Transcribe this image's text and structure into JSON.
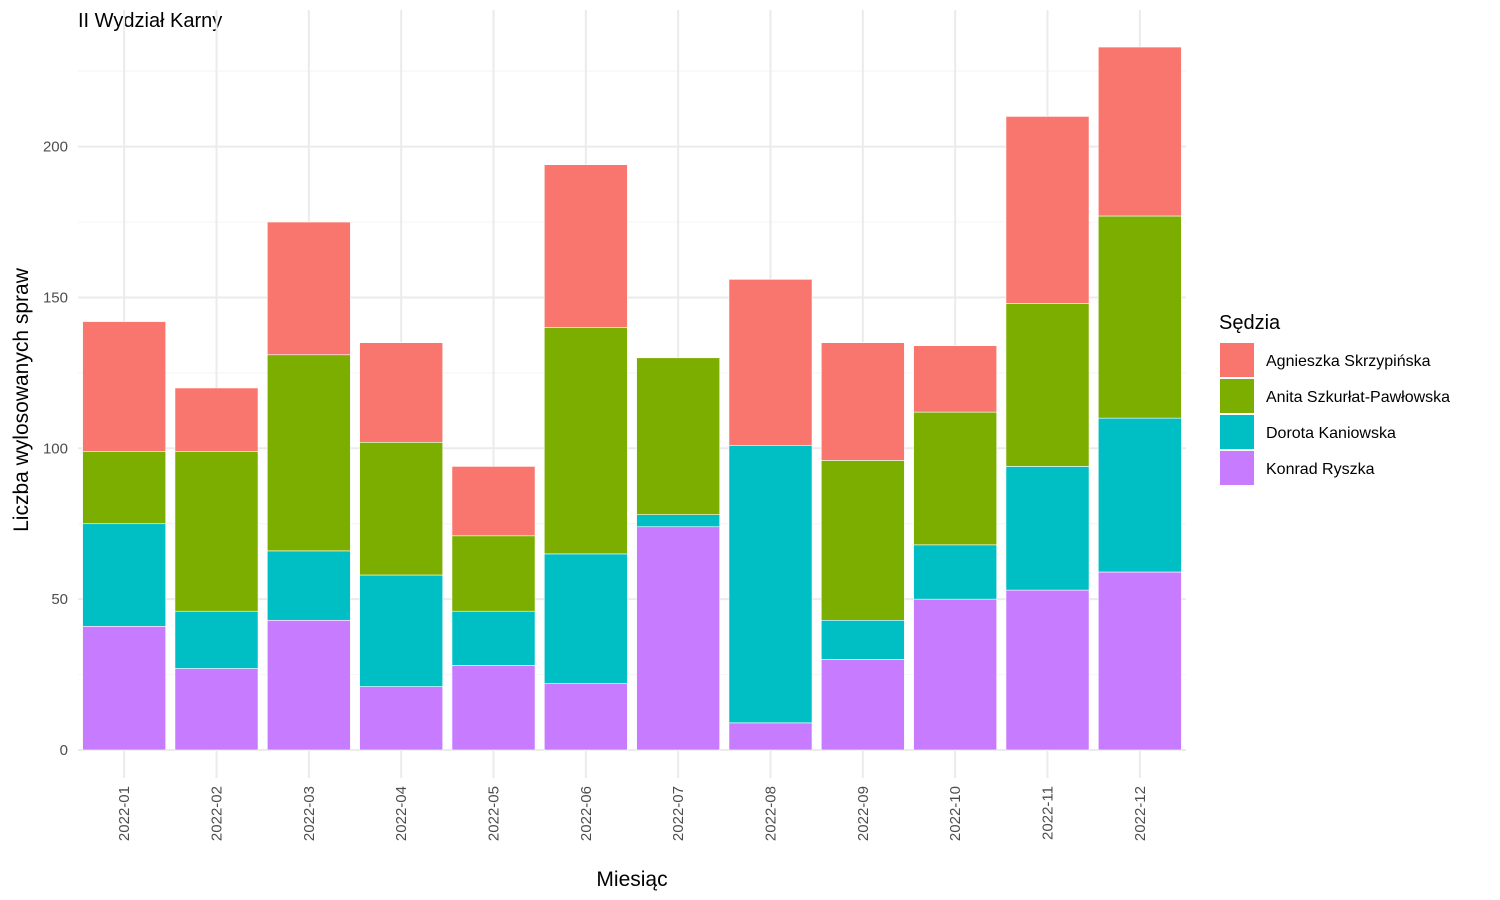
{
  "chart_data": {
    "type": "bar",
    "stacked": true,
    "title": "II Wydział Karny",
    "xlabel": "Miesiąc",
    "ylabel": "Liczba wylosowanych spraw",
    "ylim": [
      0,
      235
    ],
    "yticks": [
      0,
      50,
      100,
      150,
      200
    ],
    "grid": true,
    "legend": {
      "title": "Sędzia",
      "placement": "right"
    },
    "categories": [
      "2022-01",
      "2022-02",
      "2022-03",
      "2022-04",
      "2022-05",
      "2022-06",
      "2022-07",
      "2022-08",
      "2022-09",
      "2022-10",
      "2022-11",
      "2022-12"
    ],
    "series": [
      {
        "name": "Konrad Ryszka",
        "color": "#C77CFF",
        "values": [
          41,
          27,
          43,
          21,
          28,
          22,
          74,
          9,
          30,
          50,
          53,
          59
        ]
      },
      {
        "name": "Dorota Kaniowska",
        "color": "#00BFC4",
        "values": [
          34,
          19,
          23,
          37,
          18,
          43,
          4,
          92,
          13,
          18,
          41,
          51
        ]
      },
      {
        "name": "Anita Szkurłat-Pawłowska",
        "color": "#7CAE00",
        "values": [
          24,
          53,
          65,
          44,
          25,
          75,
          52,
          0,
          53,
          44,
          54,
          67
        ]
      },
      {
        "name": "Agnieszka Skrzypińska",
        "color": "#F8766D",
        "values": [
          43,
          21,
          44,
          33,
          23,
          54,
          0,
          55,
          39,
          22,
          62,
          56
        ]
      }
    ],
    "legend_order": [
      "Agnieszka Skrzypińska",
      "Anita Szkurłat-Pawłowska",
      "Dorota Kaniowska",
      "Konrad Ryszka"
    ]
  }
}
